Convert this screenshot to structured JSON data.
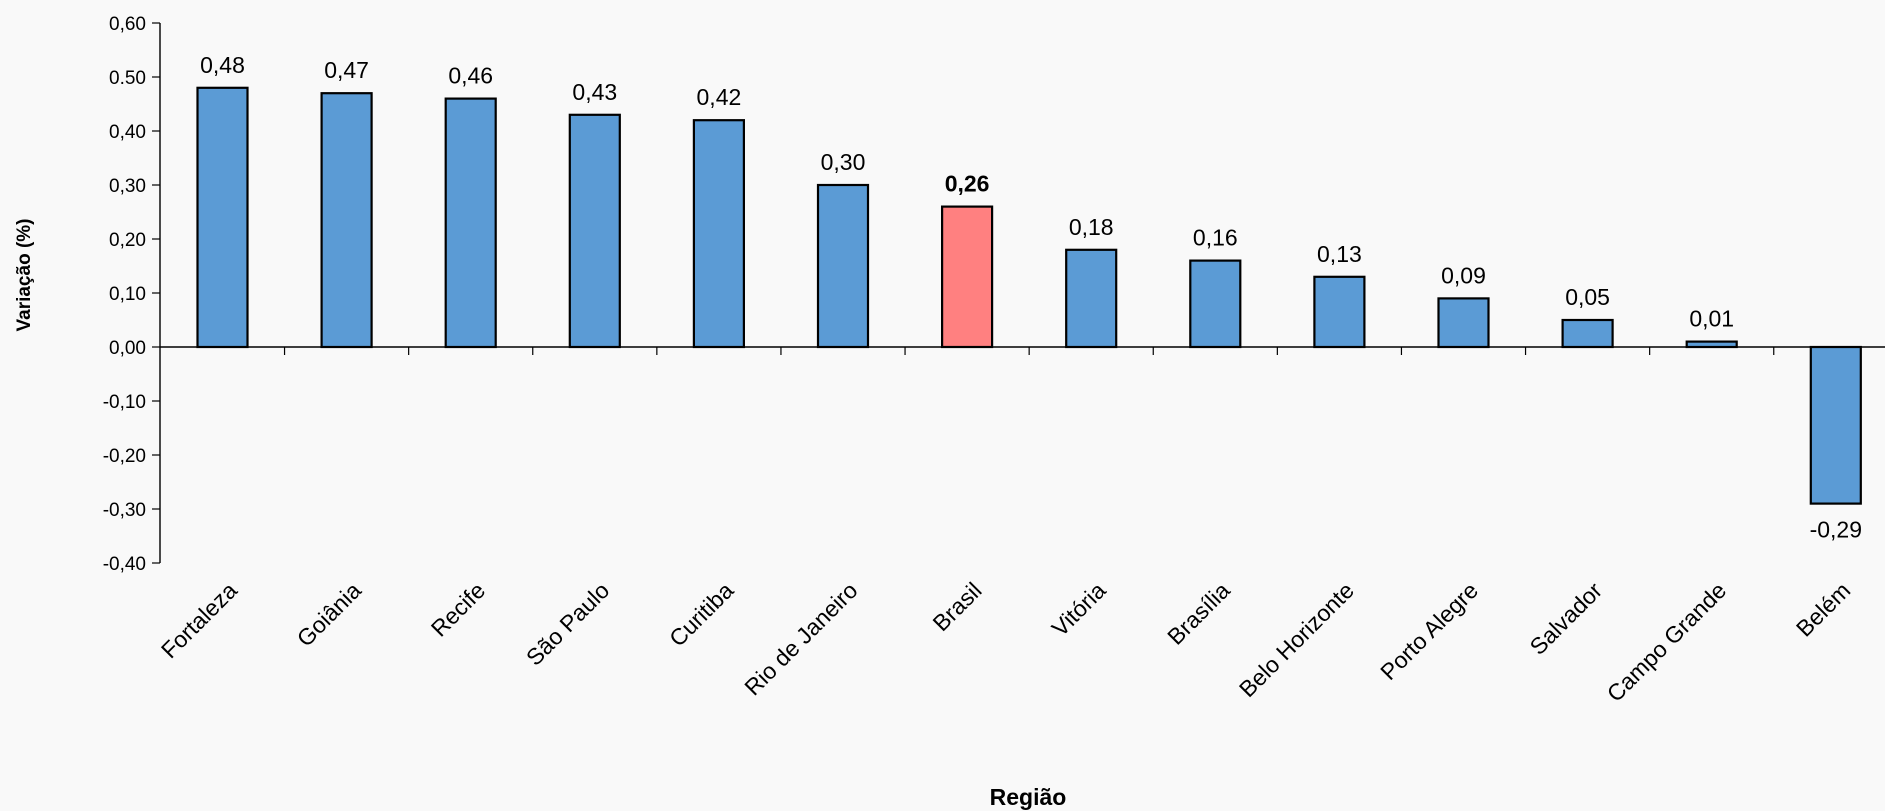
{
  "chart_data": {
    "type": "bar",
    "title": "",
    "xlabel": "Região",
    "ylabel": "Variação (%)",
    "ylim": [
      -0.4,
      0.6
    ],
    "ytick_values": [
      0.6,
      0.5,
      0.4,
      0.3,
      0.2,
      0.1,
      0.0,
      -0.1,
      -0.2,
      -0.3,
      -0.4
    ],
    "ytick_labels": [
      "0,60",
      "0.50",
      "0,40",
      "0,30",
      "0,20",
      "0,10",
      "0,00",
      "-0,10",
      "-0,20",
      "-0,30",
      "-0,40"
    ],
    "categories": [
      "Fortaleza",
      "Goiânia",
      "Recife",
      "São Paulo",
      "Curitiba",
      "Rio de Janeiro",
      "Brasil",
      "Vitória",
      "Brasília",
      "Belo Horizonte",
      "Porto Alegre",
      "Salvador",
      "Campo Grande",
      "Belém"
    ],
    "values": [
      0.48,
      0.47,
      0.46,
      0.43,
      0.42,
      0.3,
      0.26,
      0.18,
      0.16,
      0.13,
      0.09,
      0.05,
      0.01,
      -0.29
    ],
    "data_labels": [
      "0,48",
      "0,47",
      "0,46",
      "0,43",
      "0,42",
      "0,30",
      "0,26",
      "0,18",
      "0,16",
      "0,13",
      "0,09",
      "0,05",
      "0,01",
      "-0,29"
    ],
    "highlight_category": "Brasil",
    "colors": {
      "default": "#5b9bd5",
      "highlight": "#ff8080"
    },
    "grid": false,
    "legend": "none"
  }
}
